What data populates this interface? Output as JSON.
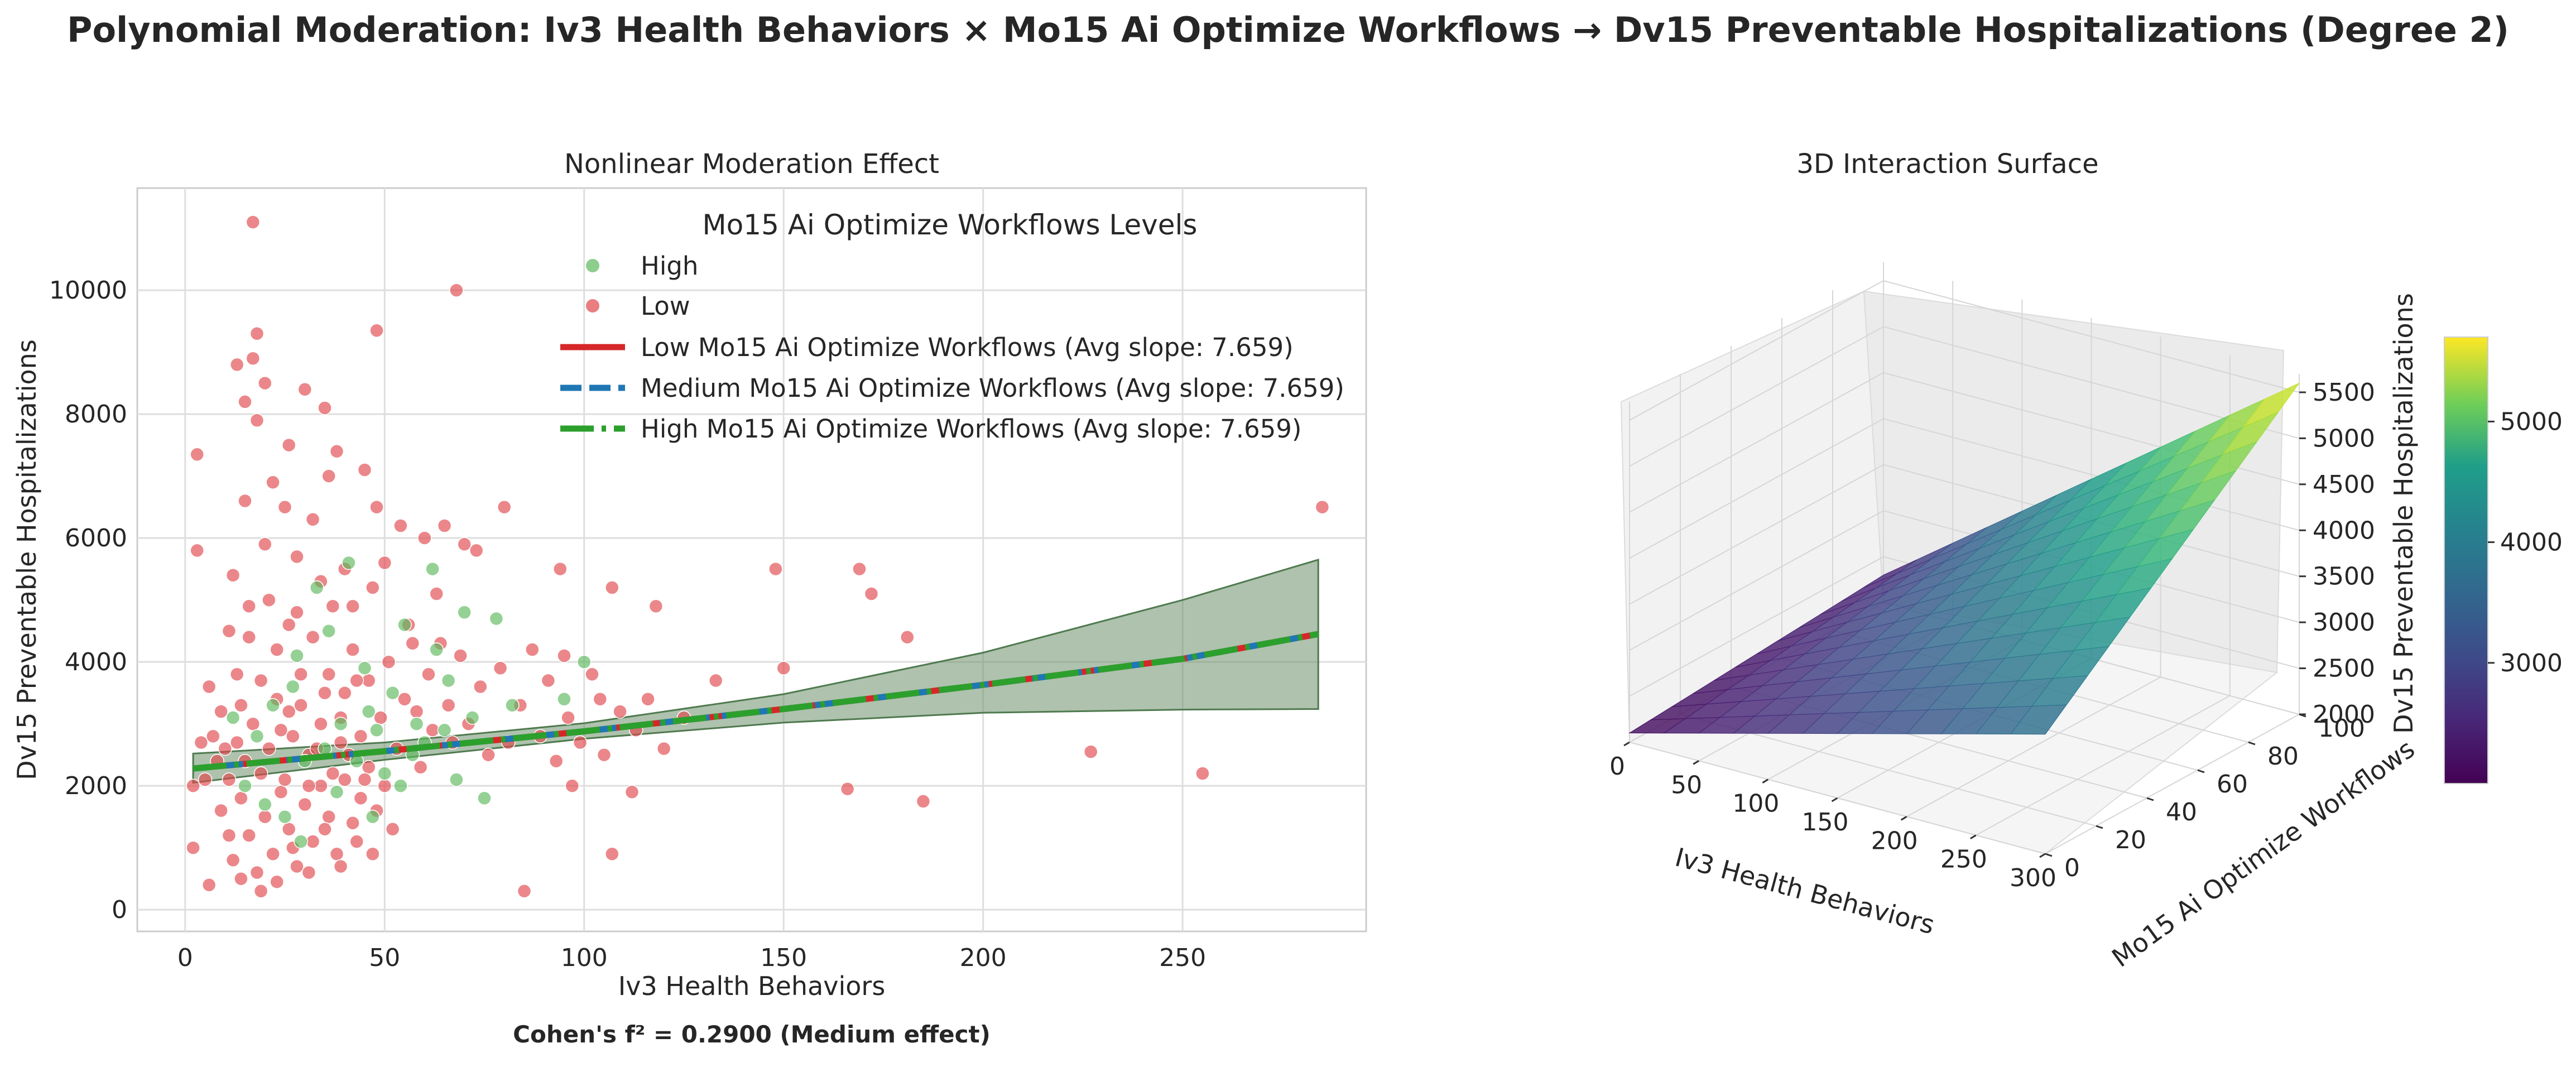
{
  "figure": {
    "title": "Polynomial Moderation: Iv3 Health Behaviors × Mo15 Ai Optimize Workflows → Dv15 Preventable Hospitalizations (Degree 2)",
    "annotation": "Cohen's f² = 0.2900 (Medium effect)"
  },
  "chart_data": [
    {
      "type": "scatter",
      "title": "Nonlinear Moderation Effect",
      "xlabel": "Iv3 Health Behaviors",
      "ylabel": "Dv15 Preventable Hospitalizations",
      "xlim": [
        -12,
        296
      ],
      "ylim": [
        -350,
        11650
      ],
      "xticks": [
        0,
        50,
        100,
        150,
        200,
        250
      ],
      "yticks": [
        0,
        2000,
        4000,
        6000,
        8000,
        10000
      ],
      "grid": true,
      "legend": {
        "title": "Mo15 Ai Optimize Workflows Levels",
        "placement": "top-right",
        "entries": [
          {
            "label": "High",
            "kind": "marker",
            "color": "#5cb85c"
          },
          {
            "label": "Low",
            "kind": "marker",
            "color": "#e0474c"
          },
          {
            "label": "Low Mo15 Ai Optimize Workflows (Avg slope: 7.659)",
            "kind": "line",
            "color": "#d62728",
            "dash": "solid"
          },
          {
            "label": "Medium Mo15 Ai Optimize Workflows (Avg slope: 7.659)",
            "kind": "line",
            "color": "#1f77b4",
            "dash": "dashed"
          },
          {
            "label": "High Mo15 Ai Optimize Workflows (Avg slope: 7.659)",
            "kind": "line",
            "color": "#2ca02c",
            "dash": "dashdot"
          }
        ]
      },
      "scatter_series": [
        {
          "name": "High",
          "color": "#5cb85c",
          "points": [
            [
              22,
              3300
            ],
            [
              28,
              4100
            ],
            [
              35,
              2600
            ],
            [
              41,
              5600
            ],
            [
              45,
              3900
            ],
            [
              50,
              2200
            ],
            [
              55,
              4600
            ],
            [
              62,
              5500
            ],
            [
              70,
              4800
            ],
            [
              78,
              4700
            ],
            [
              75,
              1800
            ],
            [
              66,
              3700
            ],
            [
              58,
              3000
            ],
            [
              48,
              2900
            ],
            [
              38,
              1900
            ],
            [
              30,
              2400
            ],
            [
              25,
              1500
            ],
            [
              18,
              2800
            ],
            [
              12,
              3100
            ],
            [
              33,
              5200
            ],
            [
              43,
              2400
            ],
            [
              52,
              3500
            ],
            [
              60,
              2700
            ],
            [
              68,
              2100
            ],
            [
              72,
              3100
            ],
            [
              82,
              3300
            ],
            [
              95,
              3400
            ],
            [
              100,
              4000
            ],
            [
              15,
              2000
            ],
            [
              20,
              1700
            ],
            [
              27,
              3600
            ],
            [
              36,
              4500
            ],
            [
              46,
              3200
            ],
            [
              57,
              2500
            ],
            [
              63,
              4200
            ],
            [
              29,
              1100
            ],
            [
              39,
              3000
            ],
            [
              47,
              1500
            ],
            [
              54,
              2000
            ],
            [
              65,
              2900
            ]
          ]
        },
        {
          "name": "Low",
          "color": "#e0474c",
          "points": [
            [
              17,
              11100
            ],
            [
              68,
              10000
            ],
            [
              48,
              9350
            ],
            [
              18,
              9300
            ],
            [
              13,
              8800
            ],
            [
              17,
              8900
            ],
            [
              20,
              8500
            ],
            [
              15,
              8200
            ],
            [
              30,
              8400
            ],
            [
              35,
              8100
            ],
            [
              18,
              7900
            ],
            [
              26,
              7500
            ],
            [
              36,
              7000
            ],
            [
              38,
              7400
            ],
            [
              45,
              7100
            ],
            [
              3,
              7350
            ],
            [
              48,
              6500
            ],
            [
              54,
              6200
            ],
            [
              65,
              6200
            ],
            [
              60,
              6000
            ],
            [
              70,
              5900
            ],
            [
              80,
              6500
            ],
            [
              73,
              5800
            ],
            [
              94,
              5500
            ],
            [
              107,
              5200
            ],
            [
              118,
              4900
            ],
            [
              148,
              5500
            ],
            [
              169,
              5500
            ],
            [
              172,
              5100
            ],
            [
              181,
              4400
            ],
            [
              133,
              3700
            ],
            [
              150,
              3900
            ],
            [
              227,
              2550
            ],
            [
              255,
              2200
            ],
            [
              285,
              6500
            ],
            [
              166,
              1950
            ],
            [
              185,
              1750
            ],
            [
              107,
              900
            ],
            [
              85,
              300
            ],
            [
              3,
              5800
            ],
            [
              97,
              2000
            ],
            [
              112,
              1900
            ],
            [
              104,
              3400
            ],
            [
              95,
              4100
            ],
            [
              6,
              400
            ],
            [
              2,
              1000
            ],
            [
              2,
              2000
            ],
            [
              10,
              2600
            ],
            [
              14,
              3300
            ],
            [
              16,
              4400
            ],
            [
              19,
              3700
            ],
            [
              21,
              5000
            ],
            [
              23,
              4200
            ],
            [
              24,
              2900
            ],
            [
              26,
              3200
            ],
            [
              28,
              4800
            ],
            [
              29,
              3800
            ],
            [
              31,
              2500
            ],
            [
              32,
              4400
            ],
            [
              34,
              3000
            ],
            [
              36,
              3800
            ],
            [
              37,
              4900
            ],
            [
              39,
              2700
            ],
            [
              40,
              3500
            ],
            [
              42,
              4200
            ],
            [
              44,
              2800
            ],
            [
              46,
              3700
            ],
            [
              47,
              5200
            ],
            [
              49,
              3100
            ],
            [
              51,
              4000
            ],
            [
              53,
              2600
            ],
            [
              55,
              3400
            ],
            [
              56,
              4600
            ],
            [
              58,
              3200
            ],
            [
              59,
              2300
            ],
            [
              61,
              3800
            ],
            [
              62,
              2900
            ],
            [
              64,
              4300
            ],
            [
              66,
              3300
            ],
            [
              67,
              2700
            ],
            [
              69,
              4100
            ],
            [
              71,
              3000
            ],
            [
              74,
              3600
            ],
            [
              76,
              2500
            ],
            [
              79,
              3900
            ],
            [
              81,
              2700
            ],
            [
              84,
              3300
            ],
            [
              87,
              4200
            ],
            [
              89,
              2800
            ],
            [
              91,
              3700
            ],
            [
              93,
              2400
            ],
            [
              96,
              3100
            ],
            [
              99,
              2700
            ],
            [
              102,
              3800
            ],
            [
              105,
              2500
            ],
            [
              109,
              3200
            ],
            [
              113,
              2900
            ],
            [
              116,
              3400
            ],
            [
              120,
              2600
            ],
            [
              125,
              3100
            ],
            [
              14,
              1800
            ],
            [
              16,
              1200
            ],
            [
              18,
              600
            ],
            [
              20,
              1500
            ],
            [
              22,
              900
            ],
            [
              24,
              1900
            ],
            [
              26,
              1300
            ],
            [
              28,
              700
            ],
            [
              30,
              1700
            ],
            [
              32,
              1100
            ],
            [
              34,
              2000
            ],
            [
              36,
              1500
            ],
            [
              38,
              900
            ],
            [
              40,
              2100
            ],
            [
              42,
              1400
            ],
            [
              44,
              1800
            ],
            [
              46,
              2300
            ],
            [
              48,
              1600
            ],
            [
              50,
              2000
            ],
            [
              52,
              1300
            ],
            [
              11,
              2100
            ],
            [
              13,
              2700
            ],
            [
              15,
              2400
            ],
            [
              17,
              3000
            ],
            [
              19,
              2200
            ],
            [
              21,
              2600
            ],
            [
              23,
              3400
            ],
            [
              25,
              2100
            ],
            [
              27,
              2800
            ],
            [
              29,
              3300
            ],
            [
              31,
              2000
            ],
            [
              33,
              2600
            ],
            [
              35,
              3500
            ],
            [
              37,
              2200
            ],
            [
              39,
              3100
            ],
            [
              41,
              2500
            ],
            [
              43,
              3700
            ],
            [
              45,
              2100
            ],
            [
              20,
              5900
            ],
            [
              25,
              6500
            ],
            [
              32,
              6300
            ],
            [
              40,
              5500
            ],
            [
              15,
              6600
            ],
            [
              22,
              6900
            ],
            [
              28,
              5700
            ],
            [
              12,
              5400
            ],
            [
              16,
              4900
            ],
            [
              26,
              4600
            ],
            [
              34,
              5300
            ],
            [
              42,
              4900
            ],
            [
              50,
              5600
            ],
            [
              57,
              4300
            ],
            [
              63,
              5100
            ],
            [
              11,
              4500
            ],
            [
              13,
              3800
            ],
            [
              9,
              3200
            ],
            [
              7,
              2800
            ],
            [
              8,
              2400
            ],
            [
              5,
              2100
            ],
            [
              4,
              2700
            ],
            [
              6,
              3600
            ],
            [
              9,
              1600
            ],
            [
              11,
              1200
            ],
            [
              12,
              800
            ],
            [
              14,
              500
            ],
            [
              19,
              300
            ],
            [
              23,
              450
            ],
            [
              27,
              1000
            ],
            [
              31,
              600
            ],
            [
              35,
              1300
            ],
            [
              39,
              700
            ],
            [
              43,
              1100
            ],
            [
              47,
              900
            ]
          ]
        }
      ],
      "fit_lines": [
        {
          "name": "Low Mo15 Ai Optimize Workflows (Avg slope: 7.659)",
          "color": "#d62728",
          "x": [
            2,
            50,
            100,
            150,
            200,
            250,
            284
          ],
          "y": [
            2280,
            2560,
            2880,
            3240,
            3630,
            4050,
            4450
          ]
        },
        {
          "name": "Medium Mo15 Ai Optimize Workflows (Avg slope: 7.659)",
          "color": "#1f77b4",
          "x": [
            2,
            50,
            100,
            150,
            200,
            250,
            284
          ],
          "y": [
            2280,
            2560,
            2880,
            3240,
            3630,
            4050,
            4450
          ]
        },
        {
          "name": "High Mo15 Ai Optimize Workflows (Avg slope: 7.659)",
          "color": "#2ca02c",
          "x": [
            2,
            50,
            100,
            150,
            200,
            250,
            284
          ],
          "y": [
            2280,
            2560,
            2880,
            3240,
            3630,
            4050,
            4450
          ]
        }
      ],
      "confidence_band": {
        "color": "#6b8f6b",
        "x": [
          2,
          50,
          100,
          150,
          200,
          250,
          284
        ],
        "lower": [
          2050,
          2420,
          2760,
          3020,
          3180,
          3230,
          3240
        ],
        "upper": [
          2520,
          2700,
          3010,
          3480,
          4150,
          5000,
          5650
        ]
      }
    },
    {
      "type": "surface",
      "title": "3D Interaction Surface",
      "xlabel": "Iv3 Health Behaviors",
      "ylabel": "Mo15 Ai Optimize Workflows",
      "zlabel": "Dv15 Preventable Hospitalizations",
      "xticks": [
        0,
        50,
        100,
        150,
        200,
        250,
        300
      ],
      "yticks": [
        0,
        20,
        40,
        60,
        80,
        100
      ],
      "zticks": [
        2000,
        2500,
        3000,
        3500,
        4000,
        4500,
        5000,
        5500
      ],
      "xlim": [
        0,
        300
      ],
      "ylim": [
        0,
        100
      ],
      "zlim": [
        2000,
        5700
      ],
      "colormap": "viridis",
      "colorbar": {
        "ticks": [
          3000,
          4000,
          5000
        ],
        "range": [
          2000,
          5700
        ]
      },
      "surface_corners": {
        "x0_y0": 2100,
        "x300_y0": 3300,
        "x0_y100": 2300,
        "x300_y100": 5600
      }
    }
  ]
}
